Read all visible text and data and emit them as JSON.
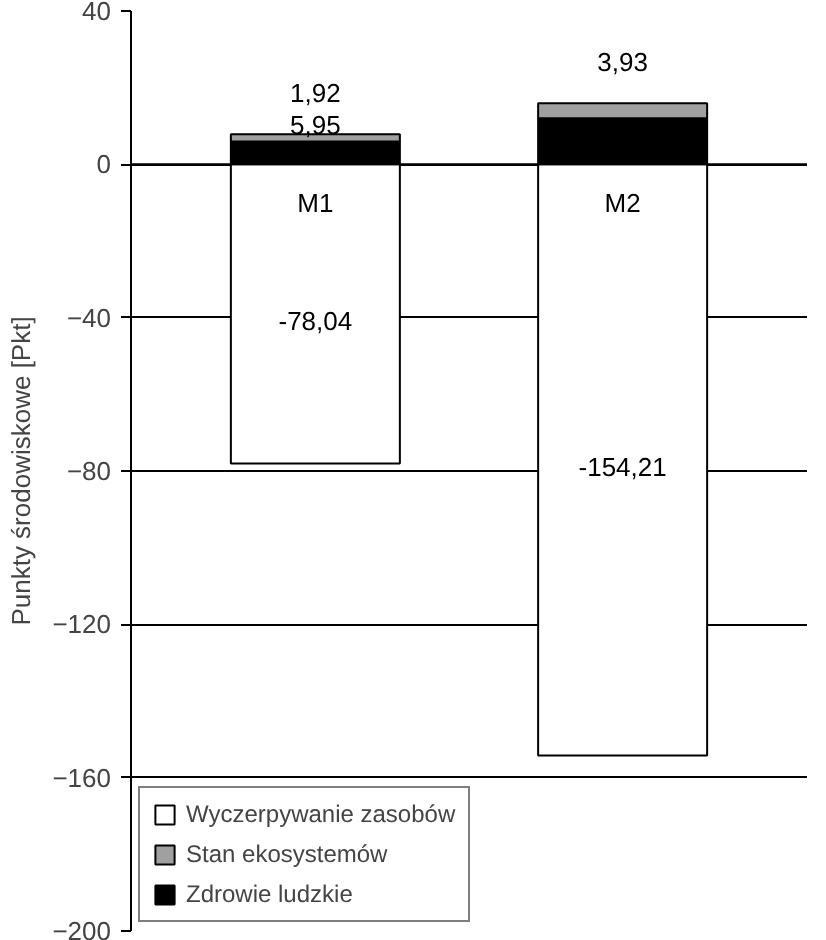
{
  "chart_data": {
    "type": "bar",
    "stacked": true,
    "categories": [
      "M1",
      "M2"
    ],
    "ylabel": "Punkty środowiskowe [Pkt]",
    "ylim": [
      -200,
      40
    ],
    "yticks": [
      -200,
      -160,
      -120,
      -80,
      -40,
      0,
      40
    ],
    "grid": "y",
    "legend": "bottom left",
    "series": [
      {
        "name": "Zdrowie ludzkie",
        "color": "#000000",
        "values": [
          5.95,
          12
        ],
        "value_labels": [
          "5,95",
          null
        ]
      },
      {
        "name": "Stan ekosystemów",
        "color": "#a0a0a0",
        "values": [
          1.92,
          3.93
        ],
        "value_labels": [
          "1,92",
          "3,93"
        ]
      },
      {
        "name": "Wyczerpywanie zasobów",
        "color": "#ffffff",
        "values": [
          -78.04,
          -154.21
        ],
        "value_labels": [
          "-78,04",
          "-154,21"
        ]
      }
    ]
  }
}
